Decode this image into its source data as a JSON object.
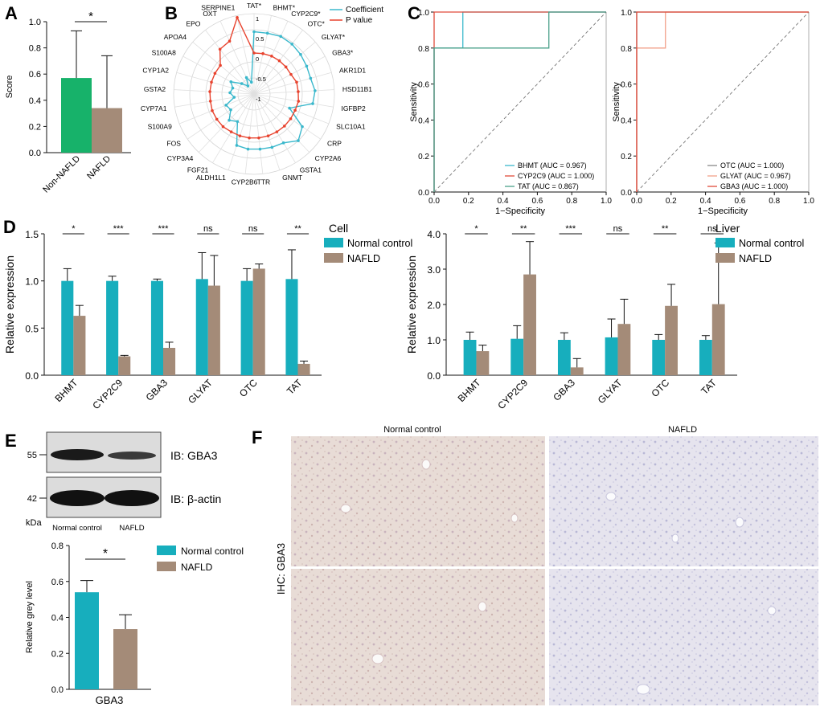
{
  "colors": {
    "teal": "#17aebd",
    "brown": "#a48b78",
    "green": "#17b26a",
    "red": "#e8432e",
    "cyan": "#3ab8cc",
    "roc_red": "#e04a3a",
    "roc_green": "#4aa08a",
    "roc_salmon": "#f2a08a",
    "roc_gray": "#888888"
  },
  "panels": {
    "A": "A",
    "B": "B",
    "C": "C",
    "D": "D",
    "E": "E",
    "F": "F"
  },
  "chart_data": [
    {
      "id": "A",
      "type": "bar",
      "categories": [
        "Non-NAFLD",
        "NAFLD"
      ],
      "values": [
        0.57,
        0.34
      ],
      "errors": [
        0.36,
        0.4
      ],
      "ylabel": "Score",
      "ylim": [
        0,
        1.0
      ],
      "yticks": [
        "0.0",
        "0.2",
        "0.4",
        "0.6",
        "0.8",
        "1.0"
      ],
      "significance": "*"
    },
    {
      "id": "B",
      "type": "radar",
      "legend": [
        "Coefficient",
        "P value"
      ],
      "rticks": [
        "1",
        "0.5",
        "0",
        "-0.5",
        "-1"
      ],
      "categories": [
        "TAT*",
        "BHMT*",
        "CYP2C9*",
        "OTC*",
        "GLYAT*",
        "GBA3*",
        "AKR1D1",
        "HSD11B1",
        "IGFBP2",
        "SLC10A1",
        "CRP",
        "CYP2A6",
        "GSTA1",
        "GNMT",
        "TTR",
        "CYP2B6",
        "ALDH1L1",
        "FGF21",
        "CYP3A4",
        "FOS",
        "S100A9",
        "CYP7A1",
        "GSTA2",
        "CYP1A2",
        "S100A8",
        "APOA4",
        "EPO",
        "OXT",
        "SERPINE1"
      ],
      "coefficient": [
        0.55,
        0.55,
        0.58,
        0.56,
        0.52,
        0.48,
        0.46,
        0.52,
        0.48,
        -0.05,
        0.45,
        0.6,
        0.42,
        0.4,
        0.38,
        0.38,
        0.35,
        -0.2,
        -0.1,
        -0.3,
        -0.25,
        -0.5,
        -0.4,
        -0.45,
        -0.35,
        -0.6,
        -0.75,
        -0.55,
        -0.7
      ],
      "pvalue": [
        0.02,
        0.03,
        0.04,
        0.04,
        0.04,
        0.04,
        0.1,
        0.1,
        0.12,
        0.1,
        0.1,
        0.1,
        0.1,
        0.1,
        0.1,
        0.1,
        0.1,
        0.1,
        0.12,
        0.12,
        0.12,
        0.1,
        0.1,
        0.1,
        0.1,
        0.1,
        0.4,
        0.45,
        0.95
      ]
    },
    {
      "id": "C1",
      "type": "line",
      "xlabel": "1−Specificity",
      "ylabel": "Sensitivity",
      "ticks": [
        "0.0",
        "0.2",
        "0.4",
        "0.6",
        "0.8",
        "1.0"
      ],
      "series": [
        {
          "name": "BHMT (AUC = 0.967)",
          "color": "cyan",
          "points": [
            [
              0,
              0
            ],
            [
              0,
              0.8
            ],
            [
              0.167,
              0.8
            ],
            [
              0.167,
              1
            ],
            [
              1,
              1
            ]
          ]
        },
        {
          "name": "CYP2C9 (AUC = 1.000)",
          "color": "roc_red",
          "points": [
            [
              0,
              0
            ],
            [
              0,
              1
            ],
            [
              1,
              1
            ]
          ]
        },
        {
          "name": "TAT (AUC = 0.867)",
          "color": "roc_green",
          "points": [
            [
              0,
              0
            ],
            [
              0,
              0.8
            ],
            [
              0.667,
              0.8
            ],
            [
              0.667,
              1
            ],
            [
              1,
              1
            ]
          ]
        }
      ]
    },
    {
      "id": "C2",
      "type": "line",
      "xlabel": "1−Specificity",
      "ylabel": "Sensitivity",
      "ticks": [
        "0.0",
        "0.2",
        "0.4",
        "0.6",
        "0.8",
        "1.0"
      ],
      "series": [
        {
          "name": "OTC (AUC = 1.000)",
          "color": "roc_gray",
          "points": [
            [
              0,
              0
            ],
            [
              0,
              1
            ],
            [
              1,
              1
            ]
          ]
        },
        {
          "name": "GLYAT (AUC = 0.967)",
          "color": "roc_salmon",
          "points": [
            [
              0,
              0
            ],
            [
              0,
              0.8
            ],
            [
              0.167,
              0.8
            ],
            [
              0.167,
              1
            ],
            [
              1,
              1
            ]
          ]
        },
        {
          "name": "GBA3 (AUC = 1.000)",
          "color": "roc_red",
          "points": [
            [
              0,
              0
            ],
            [
              0,
              1
            ],
            [
              1,
              1
            ]
          ]
        }
      ]
    },
    {
      "id": "D1",
      "type": "bar",
      "title": "Cell",
      "ylabel": "Relative expression",
      "ylim": [
        0,
        1.5
      ],
      "yticks": [
        "0.0",
        "0.5",
        "1.0",
        "1.5"
      ],
      "categories": [
        "BHMT",
        "CYP2C9",
        "GBA3",
        "GLYAT",
        "OTC",
        "TAT"
      ],
      "significance": [
        "*",
        "***",
        "***",
        "ns",
        "ns",
        "**"
      ],
      "series": [
        {
          "name": "Normal control",
          "values": [
            1.0,
            1.0,
            1.0,
            1.02,
            1.0,
            1.02
          ],
          "errors": [
            0.13,
            0.05,
            0.02,
            0.28,
            0.13,
            0.31
          ]
        },
        {
          "name": "NAFLD",
          "values": [
            0.63,
            0.2,
            0.29,
            0.95,
            1.13,
            0.12
          ],
          "errors": [
            0.11,
            0.01,
            0.06,
            0.32,
            0.05,
            0.03
          ]
        }
      ]
    },
    {
      "id": "D2",
      "type": "bar",
      "title": "Liver",
      "ylabel": "Relative expression",
      "ylim": [
        0,
        4.0
      ],
      "yticks": [
        "0.0",
        "1.0",
        "2.0",
        "3.0",
        "4.0"
      ],
      "categories": [
        "BHMT",
        "CYP2C9",
        "GBA3",
        "GLYAT",
        "OTC",
        "TAT"
      ],
      "significance": [
        "*",
        "**",
        "***",
        "ns",
        "**",
        "ns"
      ],
      "series": [
        {
          "name": "Normal control",
          "values": [
            1.0,
            1.03,
            1.0,
            1.07,
            1.0,
            1.0
          ],
          "errors": [
            0.22,
            0.37,
            0.2,
            0.52,
            0.15,
            0.12
          ]
        },
        {
          "name": "NAFLD",
          "values": [
            0.68,
            2.85,
            0.22,
            1.45,
            1.96,
            2.01
          ],
          "errors": [
            0.17,
            0.93,
            0.25,
            0.7,
            0.61,
            1.73
          ]
        }
      ]
    },
    {
      "id": "E",
      "type": "bar",
      "ylabel": "Relative grey level",
      "ylim": [
        0,
        0.8
      ],
      "yticks": [
        "0.0",
        "0.2",
        "0.4",
        "0.6",
        "0.8"
      ],
      "categories": [
        "GBA3"
      ],
      "significance": "*",
      "series": [
        {
          "name": "Normal control",
          "values": [
            0.54
          ],
          "errors": [
            0.065
          ]
        },
        {
          "name": "NAFLD",
          "values": [
            0.335
          ],
          "errors": [
            0.08
          ]
        }
      ]
    }
  ],
  "blot": {
    "label_top": "IB: GBA3",
    "label_bottom": "IB: β-actin",
    "mw_top": "55",
    "mw_bottom": "42",
    "kda": "kDa",
    "lane1": "Normal control",
    "lane2": "NAFLD"
  },
  "ihc": {
    "col1": "Normal control",
    "col2": "NAFLD",
    "row_label": "IHC: GBA3"
  }
}
